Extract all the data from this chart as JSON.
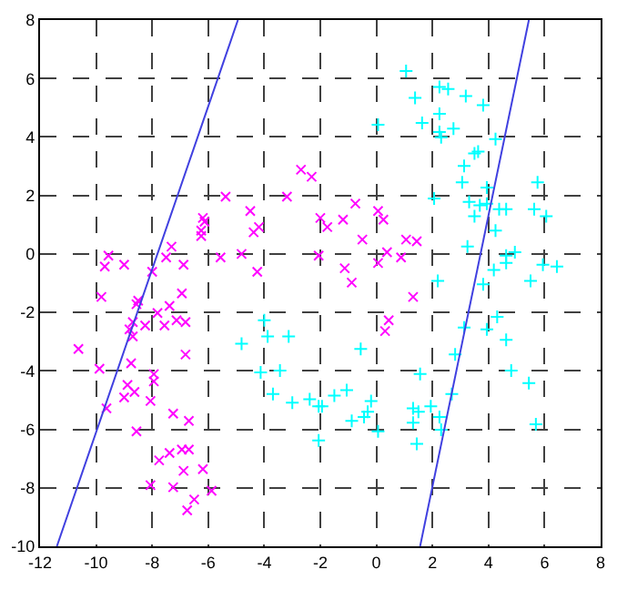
{
  "chart_data": {
    "type": "scatter",
    "xlim": [
      -12,
      8
    ],
    "ylim": [
      -10,
      8
    ],
    "xticks": [
      -12,
      -10,
      -8,
      -6,
      -4,
      -2,
      0,
      2,
      4,
      6,
      8
    ],
    "yticks": [
      -10,
      -8,
      -6,
      -4,
      -2,
      0,
      2,
      4,
      6,
      8
    ],
    "grid": true,
    "series": [
      {
        "marker": "x",
        "color": "#ff00ff",
        "x": [
          -2.69,
          -2.31,
          -5.38,
          -3.19,
          -6.19,
          -6.13,
          -4.5,
          -4.19,
          -4.38,
          -6.25,
          -6.25,
          -2.0,
          -1.75,
          -7.31,
          -9.56,
          -9.69,
          -9.0,
          -7.5,
          -6.88,
          -8.0,
          -5.56,
          -4.81,
          -4.25,
          -2.06,
          -6.94,
          -9.81,
          -8.5,
          -8.56,
          -7.38,
          -7.81,
          -7.13,
          -6.81,
          -7.56,
          -8.25,
          -8.69,
          -8.81,
          -8.69,
          -10.63,
          -6.81,
          -9.88,
          -8.75,
          -7.94,
          -7.94,
          -8.88,
          -8.63,
          -9.0,
          -8.06,
          -9.63,
          -7.25,
          -6.69,
          -8.56,
          -7.75,
          -7.38,
          -6.94,
          -6.69,
          -6.88,
          -6.19,
          -8.06,
          -7.25,
          -5.88,
          -6.5,
          -6.75,
          -0.75,
          0.06,
          0.25,
          -1.19,
          -0.5,
          1.06,
          1.44,
          0.38,
          0.06,
          0.88,
          -1.13,
          -0.88,
          1.31,
          0.44,
          0.31
        ],
        "values": [
          2.88,
          2.64,
          1.96,
          1.96,
          1.23,
          1.1,
          1.47,
          0.92,
          0.74,
          0.8,
          0.61,
          1.23,
          0.92,
          0.25,
          -0.06,
          -0.43,
          -0.37,
          -0.12,
          -0.37,
          -0.61,
          -0.12,
          0.0,
          -0.61,
          -0.06,
          -1.35,
          -1.47,
          -1.6,
          -1.72,
          -1.78,
          -2.02,
          -2.27,
          -2.33,
          -2.45,
          -2.45,
          -2.33,
          -2.58,
          -2.82,
          -3.25,
          -3.44,
          -3.93,
          -3.74,
          -4.11,
          -4.36,
          -4.48,
          -4.72,
          -4.91,
          -5.03,
          -5.28,
          -5.46,
          -5.71,
          -6.07,
          -7.06,
          -6.81,
          -6.69,
          -6.69,
          -7.42,
          -7.36,
          -7.91,
          -7.98,
          -8.1,
          -8.4,
          -8.77,
          1.72,
          1.47,
          1.17,
          1.17,
          0.49,
          0.49,
          0.43,
          0.06,
          -0.31,
          -0.12,
          -0.49,
          -0.98,
          -1.47,
          -2.27,
          -2.64
        ]
      },
      {
        "marker": "cross",
        "color": "#00ffff",
        "x": [
          1.06,
          1.38,
          2.25,
          2.56,
          3.19,
          3.81,
          0.06,
          1.63,
          2.25,
          2.25,
          2.31,
          2.75,
          4.25,
          3.5,
          3.63,
          3.13,
          3.06,
          3.94,
          5.75,
          2.06,
          3.31,
          3.5,
          3.69,
          3.94,
          4.38,
          4.63,
          5.63,
          6.06,
          4.25,
          3.25,
          4.63,
          4.94,
          4.63,
          4.19,
          5.94,
          6.44,
          5.5,
          2.19,
          3.81,
          4.31,
          3.94,
          3.13,
          4.63,
          2.81,
          -0.56,
          1.56,
          4.81,
          5.44,
          2.69,
          -2.06,
          -1.5,
          -1.06,
          -0.19,
          -0.31,
          -0.44,
          -0.88,
          0.06,
          1.31,
          1.5,
          1.94,
          1.31,
          2.25,
          2.31,
          -2.06,
          1.44,
          5.69,
          -4.0,
          -3.88,
          -3.13,
          -4.81,
          -4.13,
          -3.44,
          -3.69,
          -3.0,
          -2.38,
          -1.94
        ],
        "values": [
          6.26,
          5.34,
          5.71,
          5.64,
          5.4,
          5.09,
          4.42,
          4.48,
          4.79,
          4.17,
          3.99,
          4.29,
          3.93,
          3.44,
          3.5,
          3.01,
          2.45,
          2.27,
          2.45,
          1.9,
          1.78,
          1.29,
          1.66,
          1.72,
          1.53,
          1.53,
          1.53,
          1.29,
          0.8,
          0.25,
          -0.06,
          0.06,
          -0.31,
          -0.55,
          -0.37,
          -0.43,
          -0.92,
          -0.92,
          -1.04,
          -2.15,
          -2.58,
          -2.52,
          -2.94,
          -3.44,
          -3.25,
          -4.11,
          -3.99,
          -4.42,
          -4.79,
          -5.21,
          -4.85,
          -4.66,
          -5.03,
          -5.4,
          -5.58,
          -5.71,
          -6.07,
          -5.28,
          -5.4,
          -5.21,
          -5.77,
          -5.58,
          -6.01,
          -6.38,
          -6.5,
          -5.83,
          -2.27,
          -2.82,
          -2.82,
          -3.07,
          -4.05,
          -3.99,
          -4.79,
          -5.09,
          -4.97,
          -5.21
        ]
      },
      {
        "type": "line",
        "marker": "none",
        "line_style": "solid",
        "color": "#4040e0",
        "x": [
          -11.4,
          -4.94
        ],
        "values": [
          -10,
          8
        ]
      },
      {
        "type": "line",
        "marker": "none",
        "line_style": "solid",
        "color": "#4040e0",
        "x": [
          1.56,
          5.44
        ],
        "values": [
          -10,
          8
        ]
      }
    ]
  }
}
